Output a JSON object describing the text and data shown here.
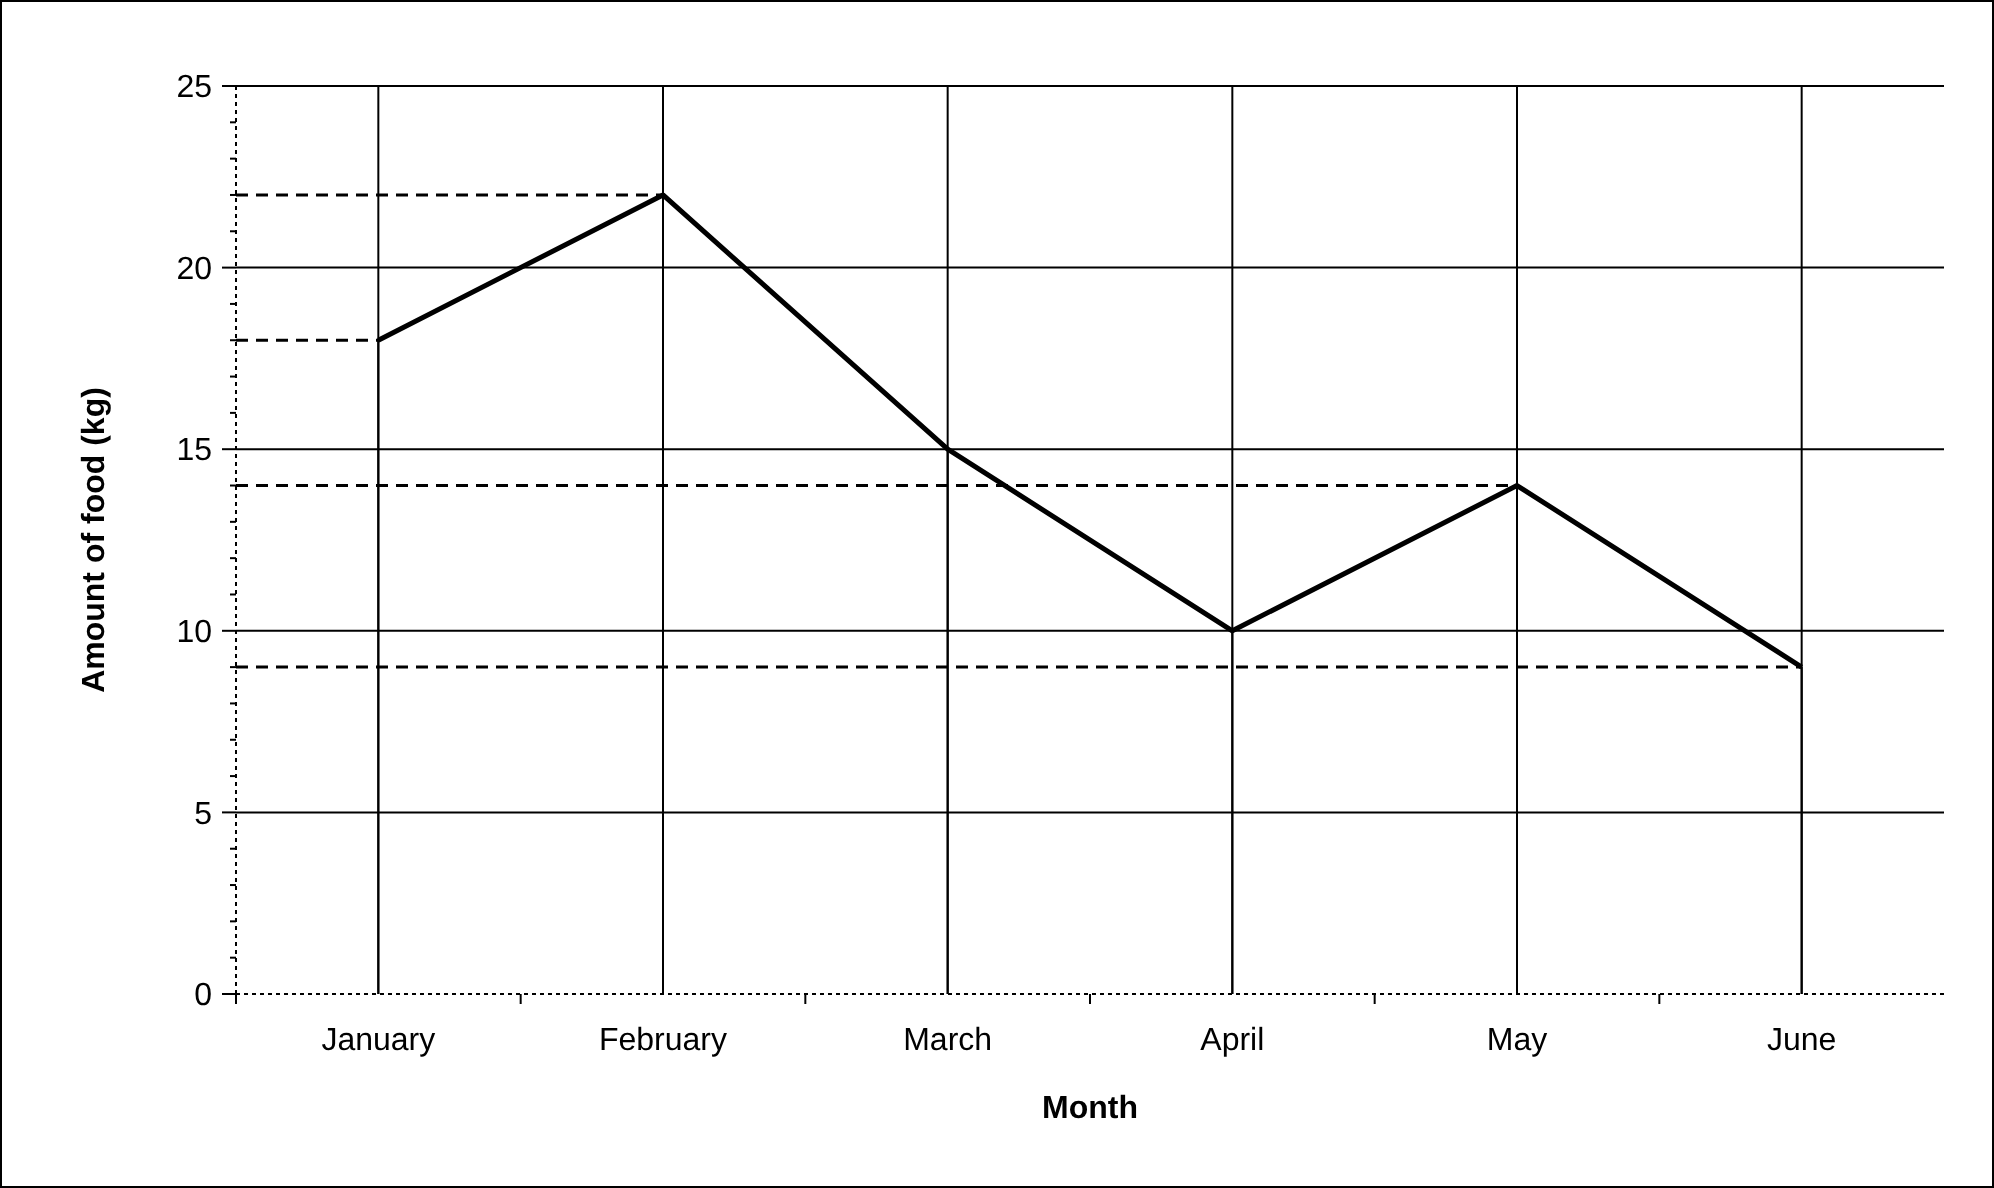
{
  "chart_data": {
    "type": "line",
    "xlabel": "Month",
    "ylabel": "Amount of food (kg)",
    "categories": [
      "January",
      "February",
      "March",
      "April",
      "May",
      "June"
    ],
    "series": [
      {
        "color": "#000000",
        "values": [
          18,
          22,
          15,
          10,
          14,
          9
        ]
      }
    ],
    "ylim": [
      0,
      25
    ],
    "yticks": [
      0,
      5,
      10,
      15,
      20,
      25
    ],
    "grid": true,
    "marker": "none",
    "line_style": "solid",
    "ref_lines": [
      {
        "axis": "y",
        "value": 22,
        "line_style": "dashed",
        "color": "#000000"
      },
      {
        "axis": "y",
        "value": 18,
        "line_style": "dashed",
        "color": "#000000"
      },
      {
        "axis": "y",
        "value": 14,
        "line_style": "dashed",
        "color": "#000000"
      },
      {
        "axis": "y",
        "value": 9,
        "line_style": "dashed",
        "color": "#000000"
      }
    ]
  }
}
